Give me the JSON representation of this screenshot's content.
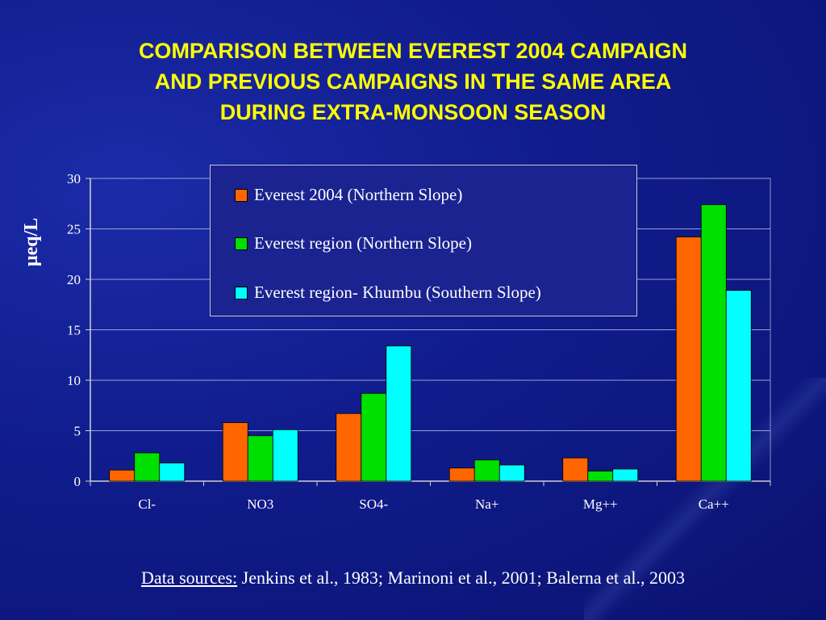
{
  "title_lines": [
    "COMPARISON BETWEEN EVEREST 2004 CAMPAIGN",
    "AND PREVIOUS CAMPAIGNS IN THE SAME AREA",
    "DURING EXTRA-MONSOON SEASON"
  ],
  "sources": {
    "label": "Data sources:",
    "text": " Jenkins et al., 1983; Marinoni et al., 2001; Balerna et al., 2003"
  },
  "chart_data": {
    "type": "bar",
    "title": "COMPARISON BETWEEN EVEREST 2004 CAMPAIGN AND PREVIOUS CAMPAIGNS IN THE SAME AREA DURING EXTRA-MONSOON SEASON",
    "xlabel": "",
    "ylabel": "μeq/L",
    "ylim": [
      0,
      30
    ],
    "yticks": [
      0,
      5,
      10,
      15,
      20,
      25,
      30
    ],
    "grid": true,
    "legend_position": "top-center",
    "categories": [
      "Cl-",
      "NO3",
      "SO4-",
      "Na+",
      "Mg++",
      "Ca++"
    ],
    "series": [
      {
        "name": "Everest 2004 (Northern Slope)",
        "color": "#ff6600",
        "values": [
          1.1,
          5.8,
          6.7,
          1.3,
          2.3,
          24.2
        ]
      },
      {
        "name": "Everest region (Northern Slope)",
        "color": "#00e000",
        "values": [
          2.8,
          4.5,
          8.7,
          2.1,
          1.0,
          27.4
        ]
      },
      {
        "name": "Everest region- Khumbu (Southern Slope)",
        "color": "#00ffff",
        "values": [
          1.8,
          5.1,
          13.4,
          1.6,
          1.2,
          18.9
        ]
      }
    ]
  }
}
